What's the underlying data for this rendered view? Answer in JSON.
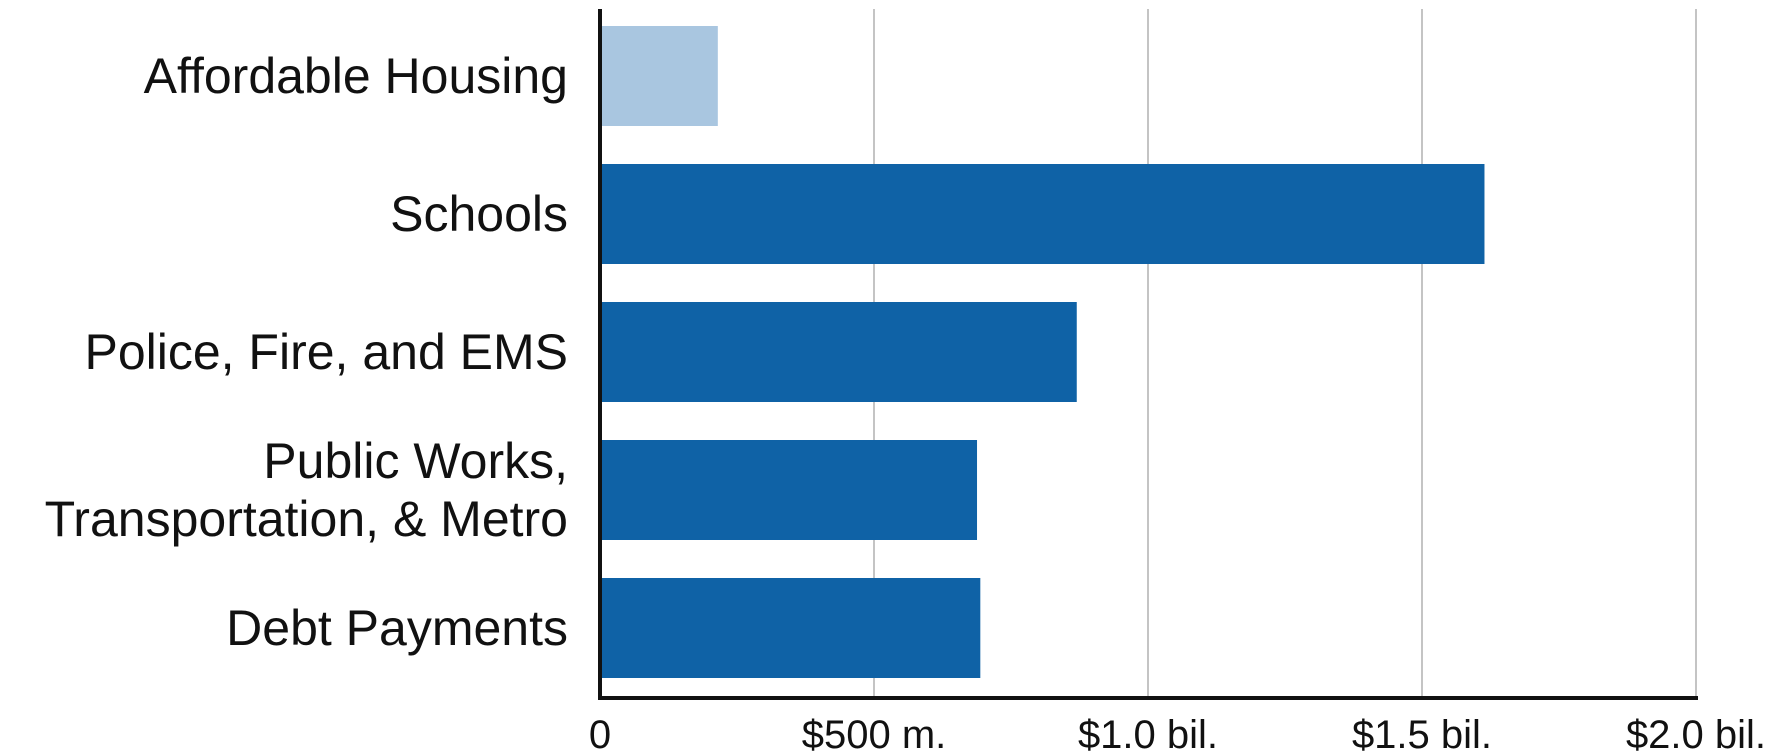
{
  "chart_data": {
    "type": "bar",
    "orientation": "horizontal",
    "categories": [
      "Affordable Housing",
      "Schools",
      "Police, Fire, and EMS",
      "Public Works, \nTransportation, & Metro",
      "Debt Payments"
    ],
    "values": [
      215,
      1614,
      870,
      688,
      694
    ],
    "colors": [
      "#a9c6e0",
      "#0f62a6",
      "#0f62a6",
      "#0f62a6",
      "#0f62a6"
    ],
    "xlim": [
      0,
      2000
    ],
    "xticks": [
      0,
      {
        "value": 500,
        "label": "$500 m."
      },
      {
        "value": 1000,
        "label": "$1.0 bil."
      },
      {
        "value": 1500,
        "label": "$1.5 bil."
      },
      {
        "value": 2000,
        "label": "$2.0 bil."
      }
    ],
    "grid": true
  }
}
